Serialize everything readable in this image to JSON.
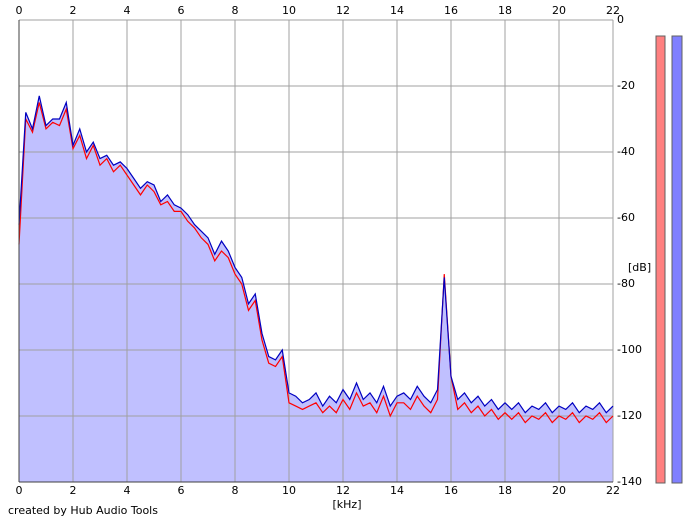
{
  "chart_data": {
    "type": "line",
    "x_label": "[kHz]",
    "y_label": "[dB]",
    "footer": "created by Hub Audio Tools",
    "xlim": [
      0,
      22
    ],
    "xticks": [
      0,
      2,
      4,
      6,
      8,
      10,
      12,
      14,
      16,
      18,
      20,
      22
    ],
    "ylim": [
      -140,
      0
    ],
    "yticks": [
      0,
      -20,
      -40,
      -60,
      -80,
      -100,
      -120,
      -140
    ],
    "grid": true,
    "fill_color": "#c0c0ff",
    "x": [
      0,
      0.25,
      0.5,
      0.75,
      1,
      1.25,
      1.5,
      1.75,
      2,
      2.25,
      2.5,
      2.75,
      3,
      3.25,
      3.5,
      3.75,
      4,
      4.25,
      4.5,
      4.75,
      5,
      5.25,
      5.5,
      5.75,
      6,
      6.25,
      6.5,
      6.75,
      7,
      7.25,
      7.5,
      7.75,
      8,
      8.25,
      8.5,
      8.75,
      9,
      9.25,
      9.5,
      9.75,
      10,
      10.25,
      10.5,
      10.75,
      11,
      11.25,
      11.5,
      11.75,
      12,
      12.25,
      12.5,
      12.75,
      13,
      13.25,
      13.5,
      13.75,
      14,
      14.25,
      14.5,
      14.75,
      15,
      15.25,
      15.5,
      15.75,
      16,
      16.25,
      16.5,
      16.75,
      17,
      17.25,
      17.5,
      17.75,
      18,
      18.25,
      18.5,
      18.75,
      19,
      19.25,
      19.5,
      19.75,
      20,
      20.25,
      20.5,
      20.75,
      21,
      21.25,
      21.5,
      21.75,
      22
    ],
    "series": [
      {
        "color": "#ff0000",
        "values": [
          -68,
          -30,
          -34,
          -25,
          -33,
          -31,
          -32,
          -27,
          -39,
          -35,
          -42,
          -38,
          -44,
          -42,
          -46,
          -44,
          -47,
          -50,
          -53,
          -50,
          -52,
          -56,
          -55,
          -58,
          -58,
          -61,
          -63,
          -66,
          -68,
          -73,
          -70,
          -72,
          -77,
          -80,
          -88,
          -85,
          -97,
          -104,
          -105,
          -102,
          -116,
          -117,
          -118,
          -117,
          -116,
          -119,
          -117,
          -119,
          -115,
          -118,
          -113,
          -117,
          -116,
          -119,
          -114,
          -120,
          -116,
          -116,
          -118,
          -114,
          -117,
          -119,
          -115,
          -77,
          -108,
          -118,
          -116,
          -119,
          -117,
          -120,
          -118,
          -121,
          -119,
          -121,
          -119,
          -122,
          -120,
          -121,
          -119,
          -122,
          -120,
          -121,
          -119,
          -122,
          -120,
          -121,
          -119,
          -122,
          -120
        ]
      },
      {
        "color": "#0000c0",
        "values": [
          -62,
          -28,
          -33,
          -23,
          -32,
          -30,
          -30,
          -25,
          -38,
          -33,
          -40,
          -37,
          -42,
          -41,
          -44,
          -43,
          -45,
          -48,
          -51,
          -49,
          -50,
          -55,
          -53,
          -56,
          -57,
          -59,
          -62,
          -64,
          -66,
          -71,
          -67,
          -70,
          -75,
          -78,
          -86,
          -83,
          -95,
          -102,
          -103,
          -100,
          -113,
          -114,
          -116,
          -115,
          -113,
          -117,
          -114,
          -116,
          -112,
          -115,
          -110,
          -115,
          -113,
          -116,
          -111,
          -117,
          -114,
          -113,
          -115,
          -111,
          -114,
          -116,
          -112,
          -78,
          -108,
          -115,
          -113,
          -116,
          -114,
          -117,
          -115,
          -118,
          -116,
          -118,
          -116,
          -119,
          -117,
          -118,
          -116,
          -119,
          -117,
          -118,
          -116,
          -119,
          -117,
          -118,
          -116,
          -119,
          -117
        ]
      }
    ]
  }
}
